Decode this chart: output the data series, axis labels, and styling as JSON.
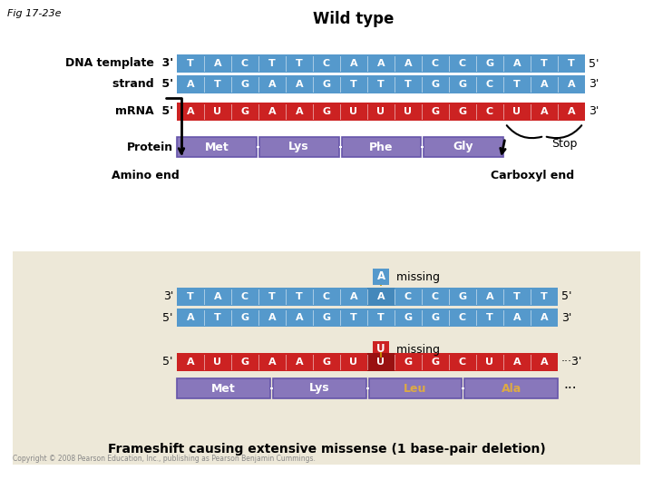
{
  "fig_label": "Fig 17-23e",
  "title": "Wild type",
  "bg_color": "#ffffff",
  "lower_bg_color": "#ede8d8",
  "dna_template": [
    "T",
    "A",
    "C",
    "T",
    "T",
    "C",
    "A",
    "A",
    "A",
    "C",
    "C",
    "G",
    "A",
    "T",
    "T"
  ],
  "dna_strand": [
    "A",
    "T",
    "G",
    "A",
    "A",
    "G",
    "T",
    "T",
    "T",
    "G",
    "G",
    "C",
    "T",
    "A",
    "A"
  ],
  "mrna_wt": [
    "A",
    "U",
    "G",
    "A",
    "A",
    "G",
    "U",
    "U",
    "U",
    "G",
    "G",
    "C",
    "U",
    "A",
    "A"
  ],
  "dna_template_del": [
    "T",
    "A",
    "C",
    "T",
    "T",
    "C",
    "A",
    "A",
    "C",
    "C",
    "G",
    "A",
    "T",
    "T"
  ],
  "dna_strand_del": [
    "A",
    "T",
    "G",
    "A",
    "A",
    "G",
    "T",
    "T",
    "G",
    "G",
    "C",
    "T",
    "A",
    "A"
  ],
  "mrna_del": [
    "A",
    "U",
    "G",
    "A",
    "A",
    "G",
    "U",
    "U",
    "G",
    "G",
    "C",
    "U",
    "A",
    "A"
  ],
  "blue_color": "#5599cc",
  "red_color": "#cc2222",
  "purple_color": "#8877bb",
  "white_text": "#ffffff",
  "yellow_text": "#ddaa44",
  "proteins_wt": [
    "Met",
    "Lys",
    "Phe",
    "Gly"
  ],
  "proteins_del": [
    "Met",
    "Lys",
    "Leu",
    "Ala"
  ],
  "frameshift_text": "Frameshift causing extensive missense (1 base-pair deletion)",
  "copyright": "Copyright © 2008 Pearson Education, Inc., publishing as Pearson Benjamin Cummings."
}
